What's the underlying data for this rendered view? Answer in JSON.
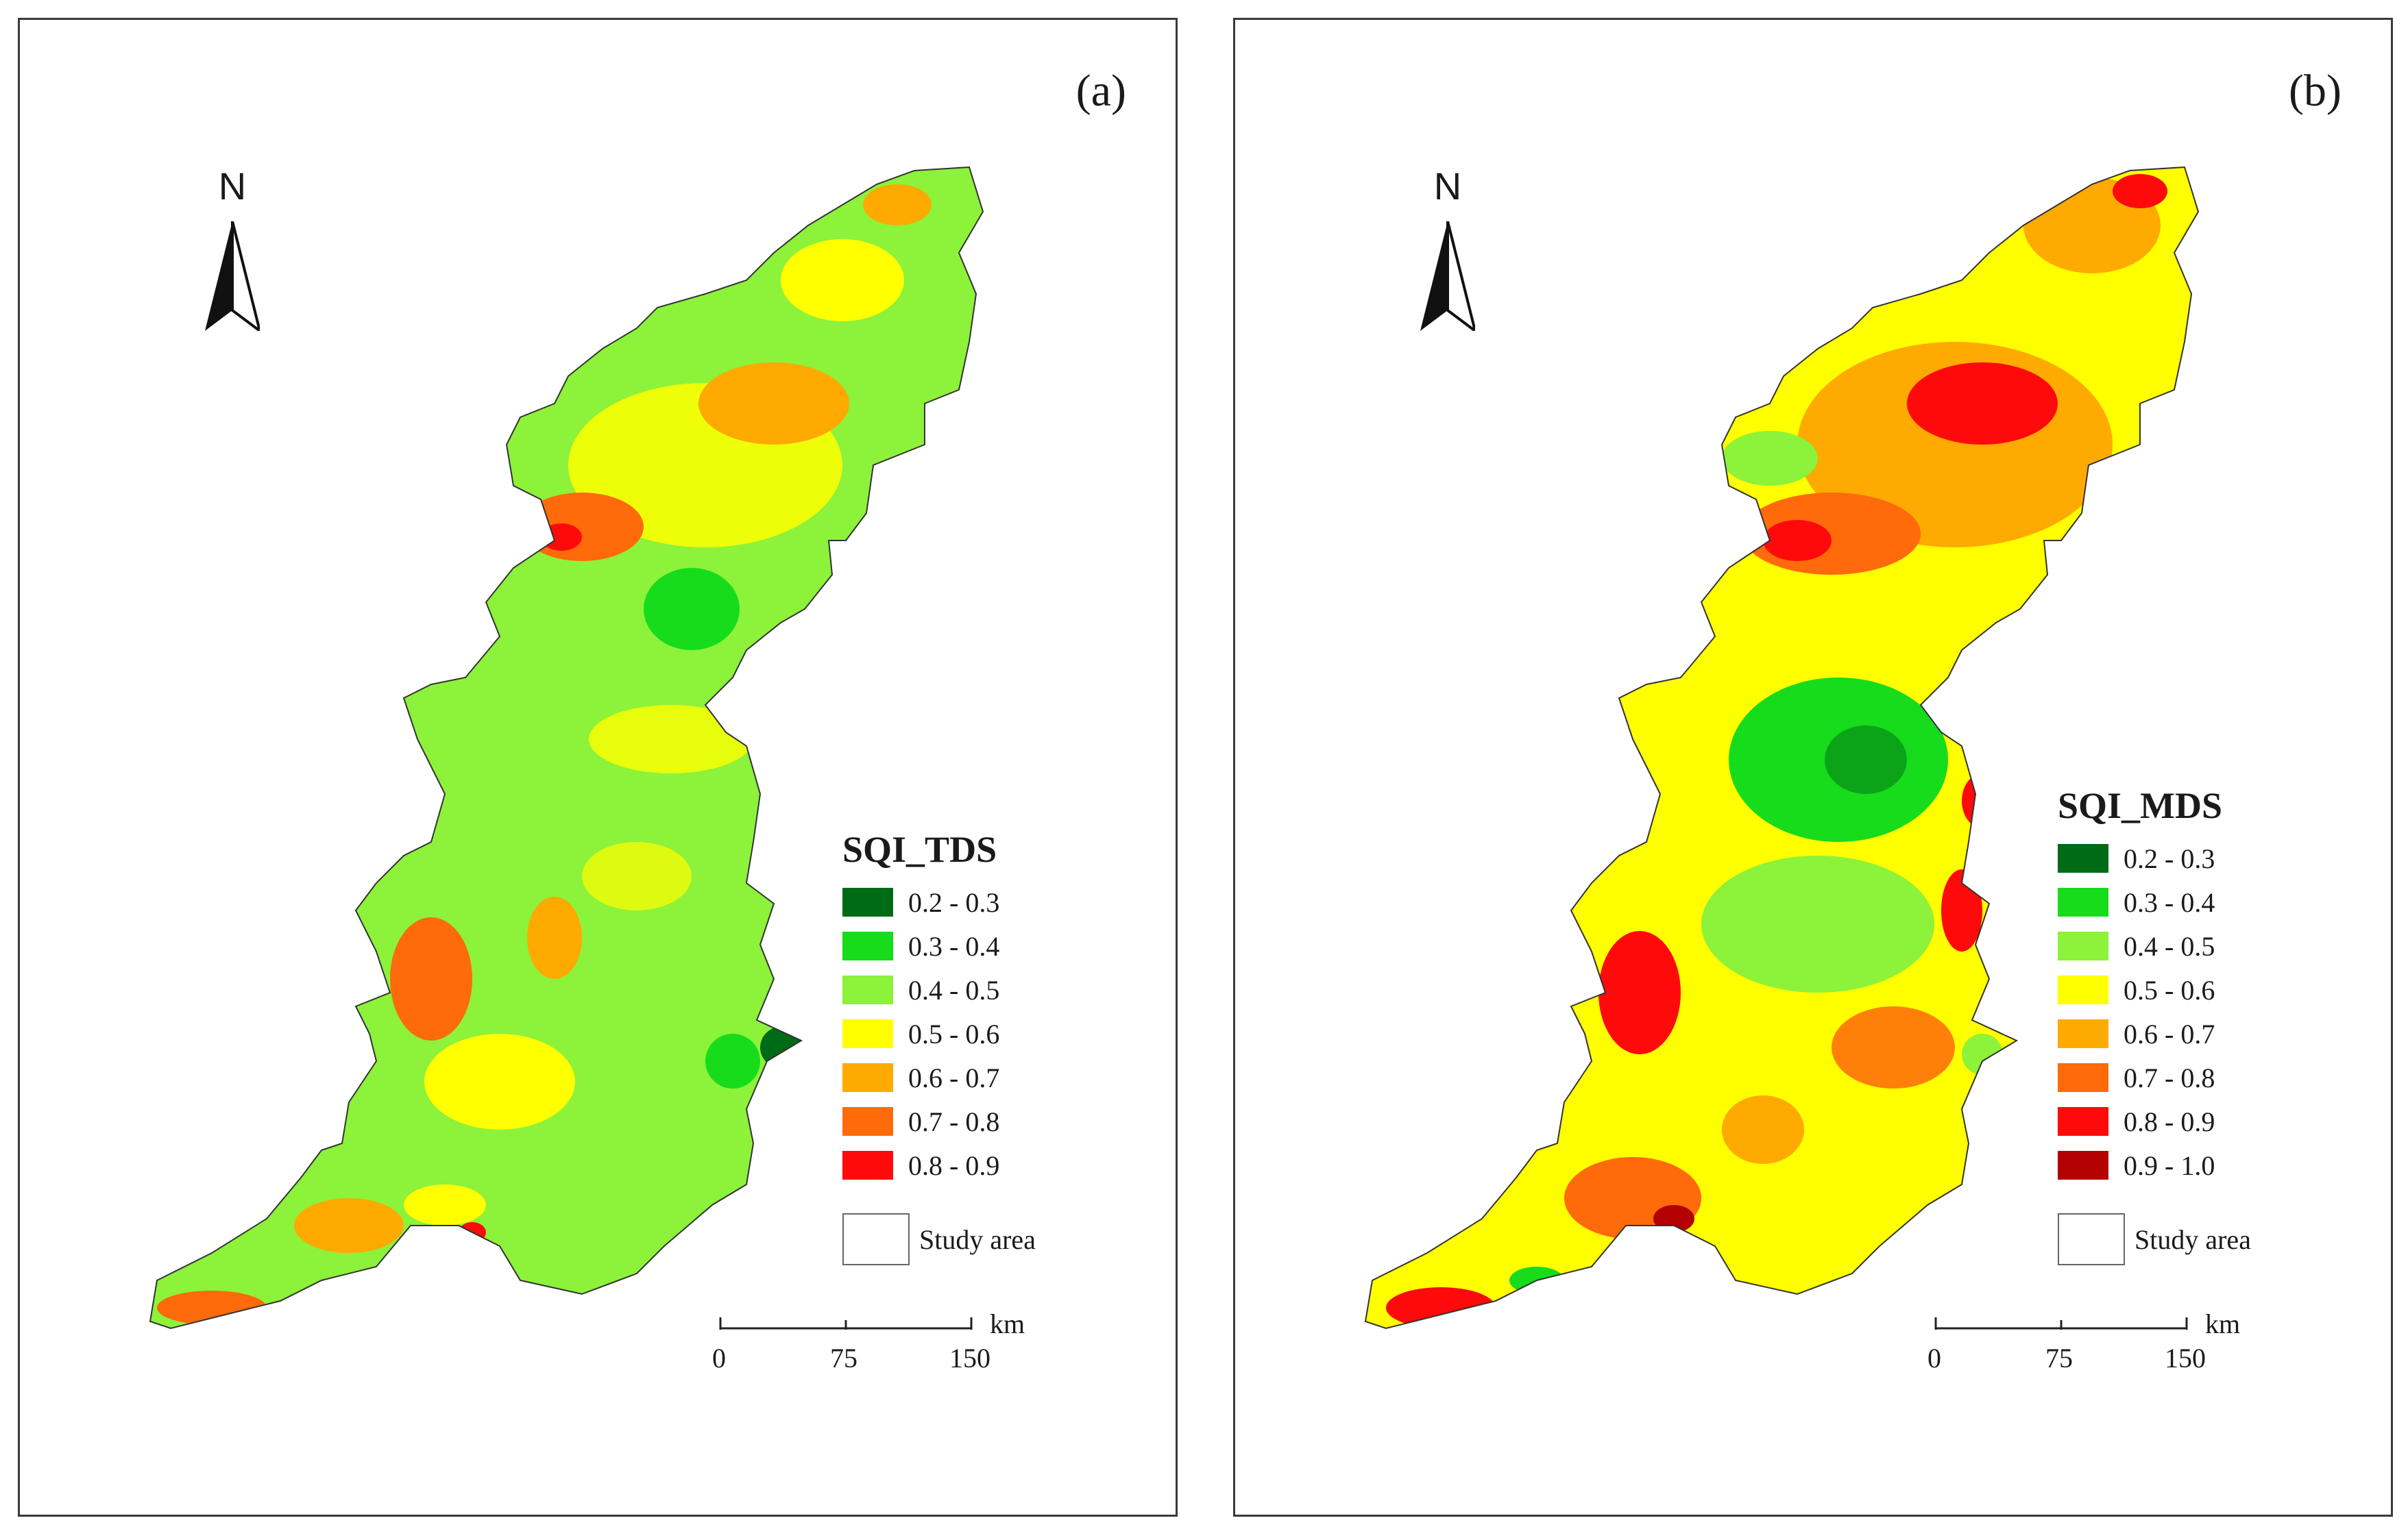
{
  "panels": [
    {
      "label": "(a)",
      "legend_title": "SQI_TDS",
      "classes": [
        {
          "label": "0.2 - 0.3",
          "color": "#006b16"
        },
        {
          "label": "0.3 - 0.4",
          "color": "#16dc1c"
        },
        {
          "label": "0.4 - 0.5",
          "color": "#8cf23a"
        },
        {
          "label": "0.5 - 0.6",
          "color": "#ffff00"
        },
        {
          "label": "0.6 - 0.7",
          "color": "#ffaa00"
        },
        {
          "label": "0.7 - 0.8",
          "color": "#ff6a0a"
        },
        {
          "label": "0.8 - 0.9",
          "color": "#ff0a0a"
        }
      ],
      "study_area_label": "Study area",
      "north_label": "N",
      "scale": {
        "unit": "km",
        "ticks": [
          "0",
          "75",
          "150"
        ]
      }
    },
    {
      "label": "(b)",
      "legend_title": "SQI_MDS",
      "classes": [
        {
          "label": "0.2 - 0.3",
          "color": "#006b16"
        },
        {
          "label": "0.3 - 0.4",
          "color": "#16dc1c"
        },
        {
          "label": "0.4 - 0.5",
          "color": "#8cf23a"
        },
        {
          "label": "0.5 - 0.6",
          "color": "#ffff00"
        },
        {
          "label": "0.6 - 0.7",
          "color": "#ffaa00"
        },
        {
          "label": "0.7 - 0.8",
          "color": "#ff6a0a"
        },
        {
          "label": "0.8 - 0.9",
          "color": "#ff0a0a"
        },
        {
          "label": "0.9 - 1.0",
          "color": "#b30000"
        }
      ],
      "study_area_label": "Study area",
      "north_label": "N",
      "scale": {
        "unit": "km",
        "ticks": [
          "0",
          "75",
          "150"
        ]
      }
    }
  ]
}
